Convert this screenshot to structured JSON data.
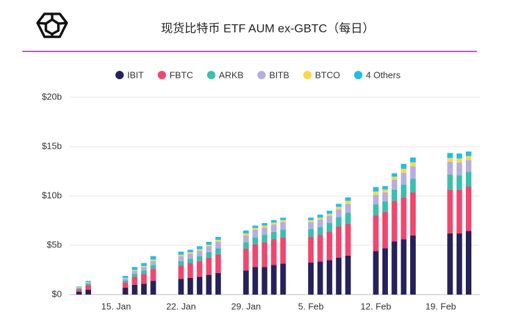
{
  "chart_data": {
    "type": "stacked_bar",
    "title": "现货比特币 ETF AUM ex-GBTC（每日）",
    "x": [
      "11. Jan",
      "12. Jan",
      "16. Jan",
      "17. Jan",
      "18. Jan",
      "19. Jan",
      "22. Jan",
      "23. Jan",
      "24. Jan",
      "25. Jan",
      "26. Jan",
      "29. Jan",
      "30. Jan",
      "31. Jan",
      "1. Feb",
      "2. Feb",
      "5. Feb",
      "6. Feb",
      "7. Feb",
      "8. Feb",
      "9. Feb",
      "12. Feb",
      "13. Feb",
      "14. Feb",
      "15. Feb",
      "16. Feb",
      "20. Feb",
      "21. Feb",
      "22. Feb"
    ],
    "xticks": [
      "15. Jan",
      "22. Jan",
      "29. Jan",
      "5. Feb",
      "12. Feb",
      "19. Feb"
    ],
    "series": [
      {
        "name": "IBIT",
        "color": "#27215a",
        "values": [
          0.3,
          0.5,
          0.7,
          1.0,
          1.1,
          1.4,
          1.6,
          1.7,
          1.8,
          2.0,
          2.2,
          2.45,
          2.8,
          2.8,
          3.0,
          3.15,
          3.25,
          3.35,
          3.5,
          3.75,
          3.95,
          4.4,
          4.7,
          5.4,
          5.6,
          6.0,
          6.2,
          6.2,
          6.45
        ]
      },
      {
        "name": "FBTC",
        "color": "#ef476f",
        "values": [
          0.25,
          0.45,
          0.55,
          0.8,
          1.0,
          1.2,
          1.35,
          1.5,
          1.6,
          1.75,
          1.9,
          2.2,
          2.3,
          2.5,
          2.6,
          2.65,
          2.6,
          2.7,
          2.9,
          3.15,
          3.25,
          3.65,
          3.7,
          4.1,
          4.25,
          4.35,
          4.45,
          4.45,
          4.5
        ]
      },
      {
        "name": "ARKB",
        "color": "#3bbfad",
        "values": [
          0.1,
          0.15,
          0.2,
          0.3,
          0.35,
          0.4,
          0.45,
          0.45,
          0.5,
          0.55,
          0.6,
          0.65,
          0.7,
          0.75,
          0.75,
          0.8,
          0.8,
          0.8,
          0.85,
          0.95,
          1.1,
          1.1,
          1.05,
          1.15,
          1.3,
          1.4,
          1.5,
          1.45,
          1.5
        ]
      },
      {
        "name": "BITB",
        "color": "#b4afe0",
        "values": [
          0.1,
          0.15,
          0.2,
          0.3,
          0.35,
          0.4,
          0.5,
          0.5,
          0.55,
          0.6,
          0.65,
          0.7,
          0.75,
          0.75,
          0.75,
          0.75,
          0.7,
          0.75,
          0.75,
          0.8,
          0.9,
          0.95,
          0.9,
          1.0,
          1.2,
          1.25,
          1.3,
          1.3,
          1.2
        ]
      },
      {
        "name": "BTCO",
        "color": "#fbd84a",
        "values": [
          0.02,
          0.03,
          0.05,
          0.1,
          0.1,
          0.15,
          0.15,
          0.15,
          0.15,
          0.15,
          0.2,
          0.2,
          0.2,
          0.2,
          0.2,
          0.2,
          0.2,
          0.2,
          0.2,
          0.25,
          0.3,
          0.35,
          0.3,
          0.3,
          0.4,
          0.4,
          0.4,
          0.4,
          0.4
        ]
      },
      {
        "name": "4 Others",
        "color": "#1ec0e8",
        "values": [
          0.05,
          0.1,
          0.2,
          0.3,
          0.3,
          0.35,
          0.3,
          0.25,
          0.3,
          0.3,
          0.3,
          0.3,
          0.25,
          0.25,
          0.25,
          0.25,
          0.25,
          0.3,
          0.3,
          0.3,
          0.35,
          0.45,
          0.35,
          0.35,
          0.5,
          0.5,
          0.5,
          0.5,
          0.45
        ]
      }
    ],
    "ylim": [
      0,
      20
    ],
    "yticks": [
      {
        "value": 0,
        "label": "$0"
      },
      {
        "value": 5,
        "label": "$5b"
      },
      {
        "value": 10,
        "label": "$10b"
      },
      {
        "value": 15,
        "label": "$15b"
      },
      {
        "value": 20,
        "label": "$20b"
      }
    ],
    "grid": true,
    "legend": "top"
  }
}
